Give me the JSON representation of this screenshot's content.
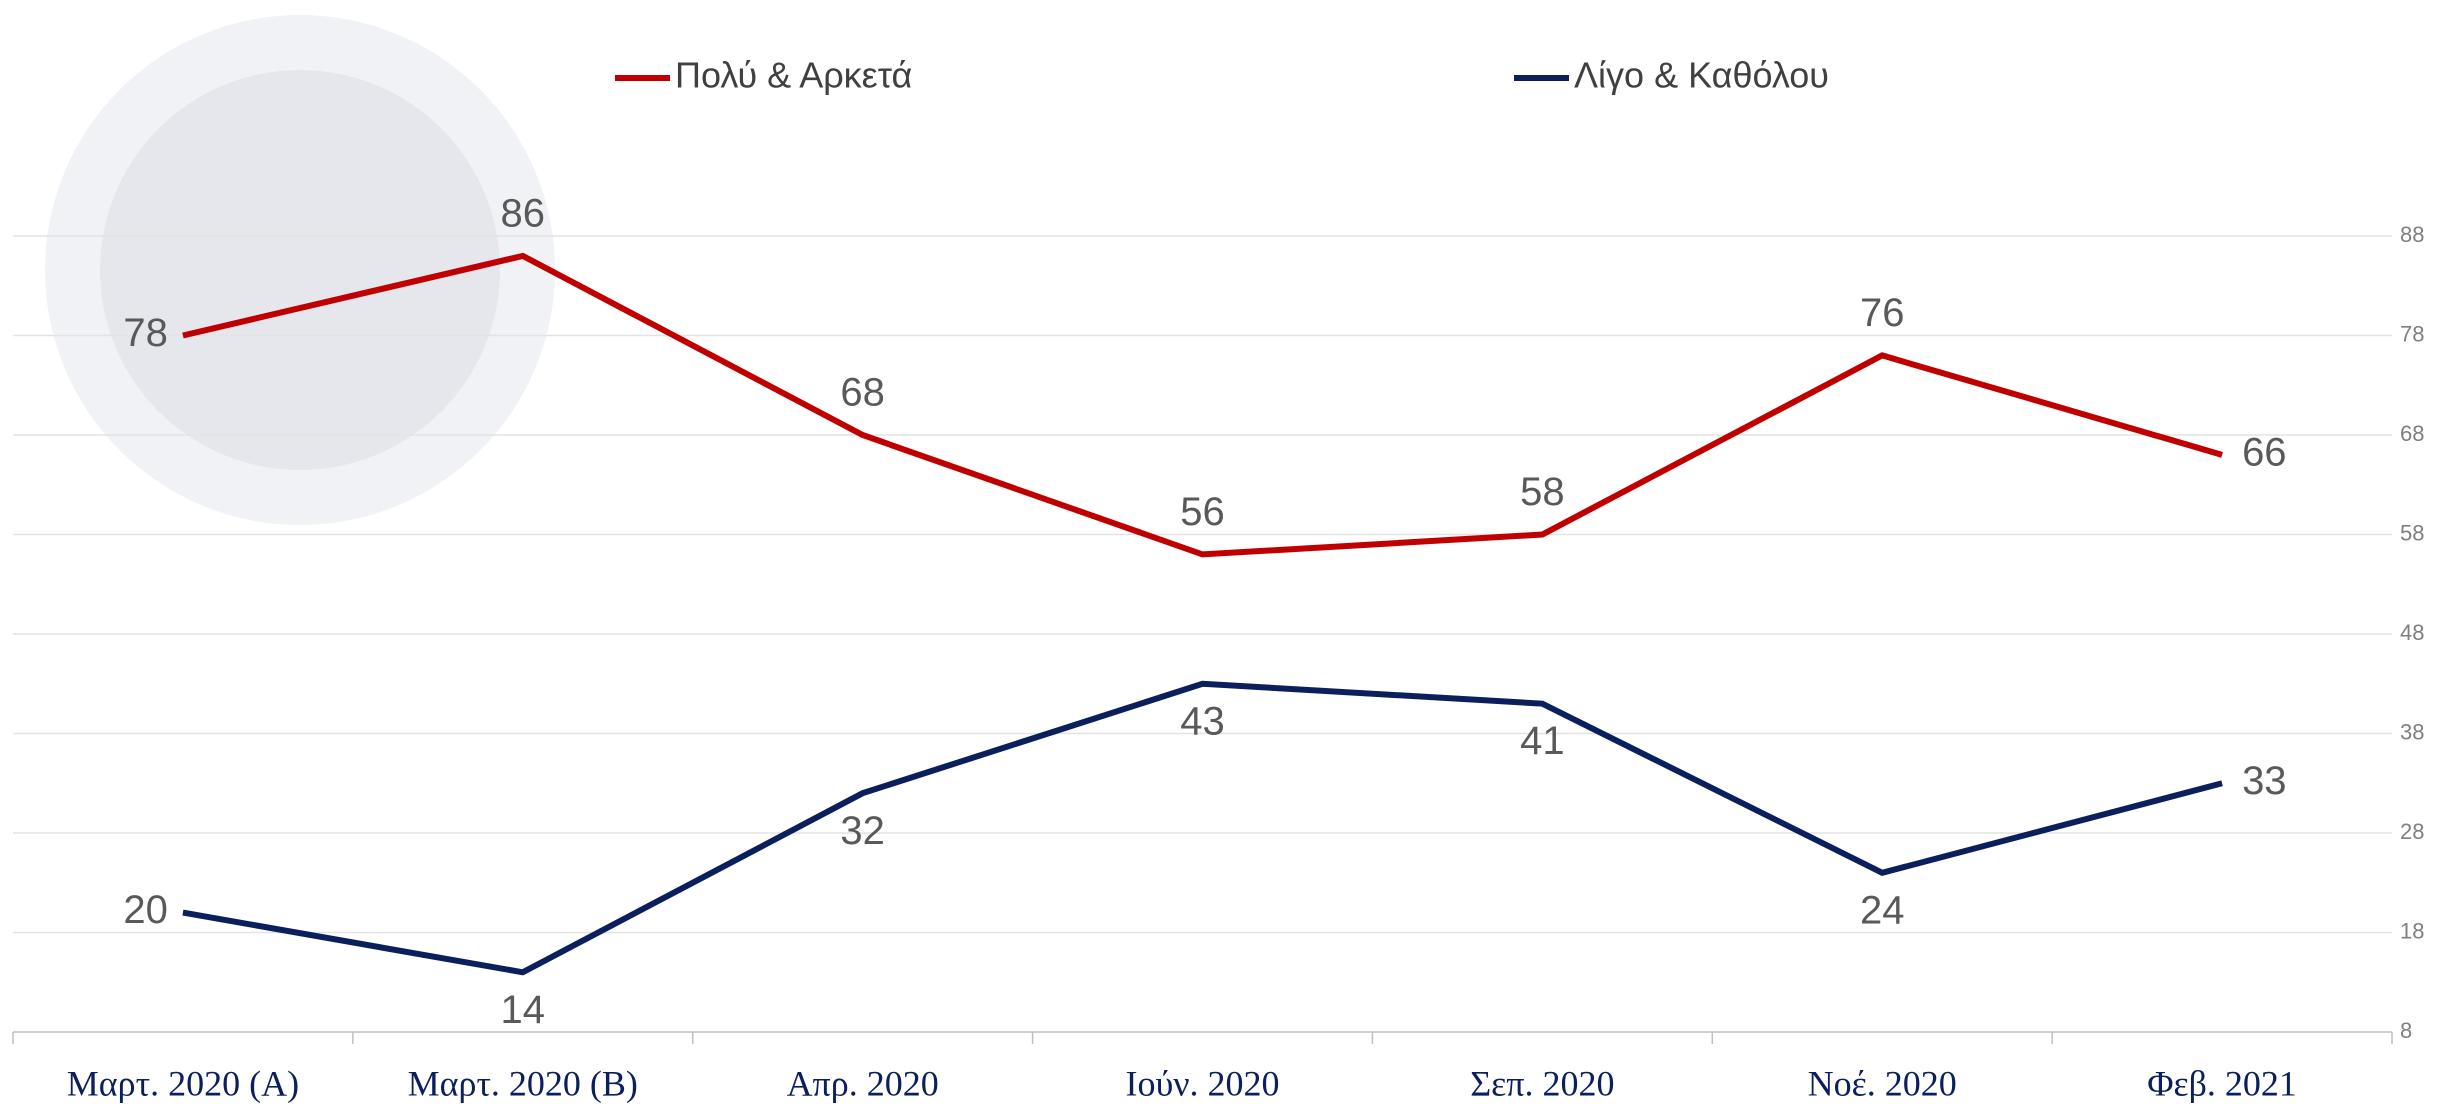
{
  "chart_data": {
    "type": "line",
    "categories": [
      "Μαρτ. 2020 (Α)",
      "Μαρτ. 2020 (Β)",
      "Απρ. 2020",
      "Ιούν. 2020",
      "Σεπ. 2020",
      "Νοέ. 2020",
      "Φεβ. 2021"
    ],
    "series": [
      {
        "name": "Πολύ & Αρκετά",
        "color": "#c00000",
        "values": [
          78,
          86,
          68,
          56,
          58,
          76,
          66
        ]
      },
      {
        "name": "Λίγο & Καθόλου",
        "color": "#0b1f5c",
        "values": [
          20,
          14,
          32,
          43,
          41,
          24,
          33
        ]
      }
    ],
    "ylim": [
      8,
      88
    ],
    "yticks": [
      8,
      18,
      28,
      38,
      48,
      58,
      68,
      78,
      88
    ],
    "grid": true
  }
}
